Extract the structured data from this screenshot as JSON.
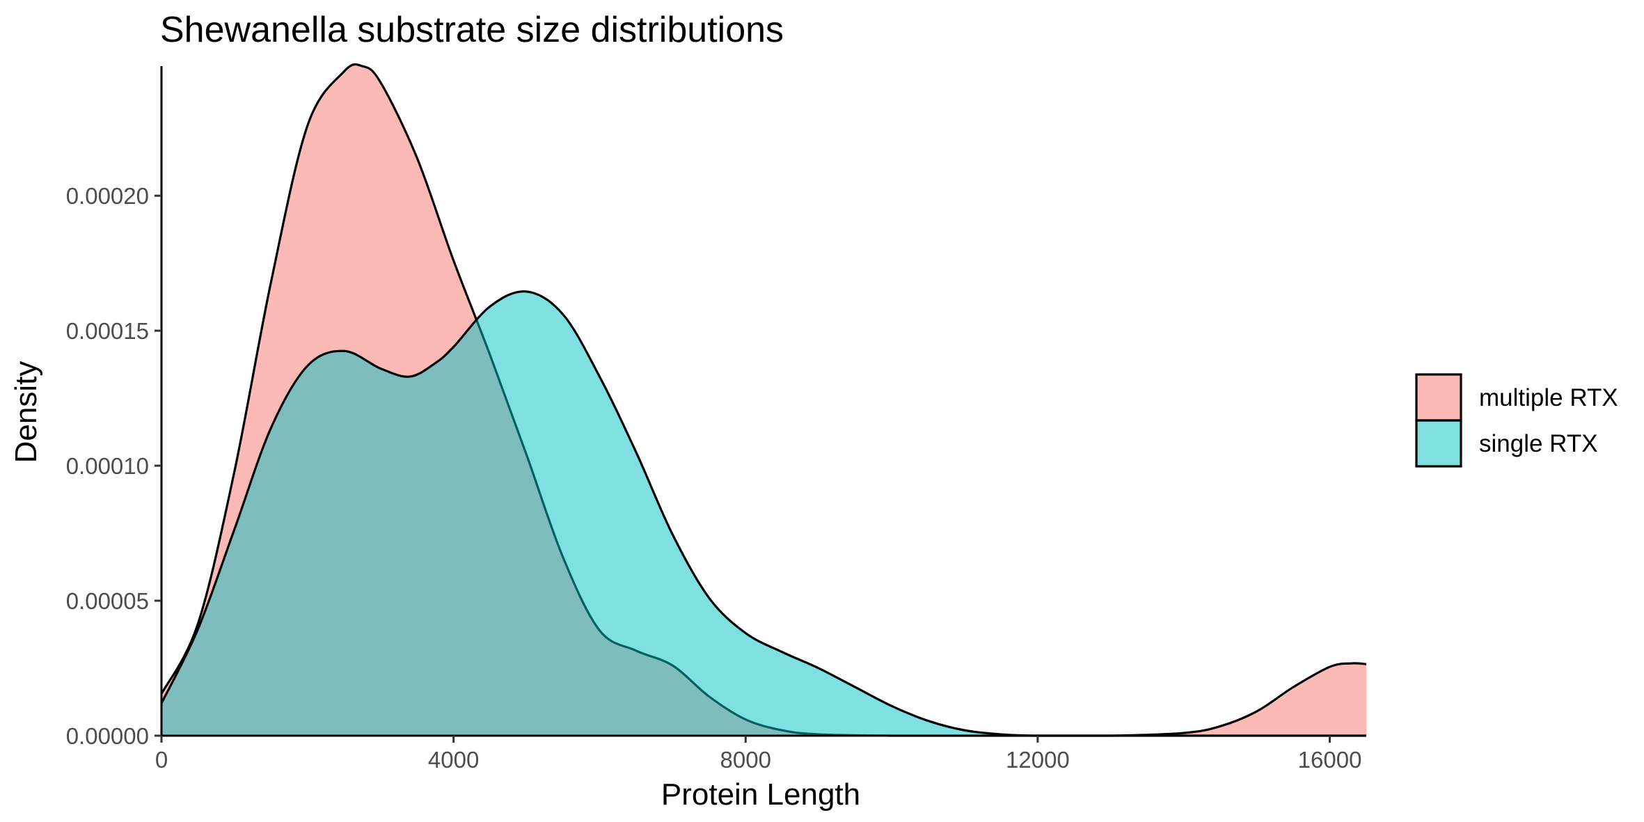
{
  "chart_data": {
    "type": "area",
    "title": "Shewanella substrate size distributions",
    "xlabel": "Protein Length",
    "ylabel": "Density",
    "xlim": [
      0,
      16500
    ],
    "ylim": [
      0,
      0.000248
    ],
    "x_ticks": [
      {
        "value": 0,
        "label": "0"
      },
      {
        "value": 4000,
        "label": "4000"
      },
      {
        "value": 8000,
        "label": "8000"
      },
      {
        "value": 12000,
        "label": "12000"
      },
      {
        "value": 16000,
        "label": "16000"
      }
    ],
    "y_ticks": [
      {
        "value": 0,
        "label": "0.00000"
      },
      {
        "value": 5e-05,
        "label": "0.00005"
      },
      {
        "value": 0.0001,
        "label": "0.00010"
      },
      {
        "value": 0.00015,
        "label": "0.00015"
      },
      {
        "value": 0.0002,
        "label": "0.00020"
      }
    ],
    "grid": false,
    "legend_position": "right",
    "series": [
      {
        "name": "multiple RTX",
        "color": "#F8766D",
        "x": [
          0,
          500,
          1000,
          1500,
          2000,
          2500,
          2750,
          3000,
          3500,
          4000,
          4500,
          5000,
          5500,
          6000,
          6500,
          7000,
          7500,
          8000,
          8500,
          9000,
          10000,
          11000,
          12000,
          13000,
          14000,
          14500,
          15000,
          15500,
          16000,
          16300,
          16500
        ],
        "y": [
          1.55e-05,
          4.15e-05,
          9.8e-05,
          0.000168,
          0.000226,
          0.000246,
          0.000248,
          0.000242,
          0.000214,
          0.000176,
          0.000141,
          0.000104,
          6.6e-05,
          3.9e-05,
          3.15e-05,
          2.6e-05,
          1.45e-05,
          6e-06,
          2e-06,
          5e-07,
          0,
          0,
          0,
          0,
          1e-06,
          3.5e-06,
          9e-06,
          1.8e-05,
          2.55e-05,
          2.68e-05,
          2.65e-05
        ]
      },
      {
        "name": "single RTX",
        "color": "#00BFC4",
        "x": [
          0,
          500,
          1000,
          1500,
          2000,
          2500,
          3000,
          3400,
          3750,
          4000,
          4500,
          5000,
          5500,
          6000,
          6500,
          7000,
          7500,
          8000,
          8500,
          9000,
          9500,
          10000,
          10500,
          11000,
          11500,
          12000,
          13000,
          14000,
          15000,
          16000,
          16500
        ],
        "y": [
          1.2e-05,
          3.95e-05,
          7.65e-05,
          0.000114,
          0.000137,
          0.0001425,
          0.000136,
          0.000133,
          0.000138,
          0.000144,
          0.000159,
          0.0001645,
          0.000156,
          0.000133,
          0.000105,
          7.45e-05,
          5.1e-05,
          3.8e-05,
          3.1e-05,
          2.5e-05,
          1.8e-05,
          1.1e-05,
          5.5e-06,
          2e-06,
          5e-07,
          0,
          0,
          0,
          0,
          0,
          0
        ]
      }
    ]
  }
}
